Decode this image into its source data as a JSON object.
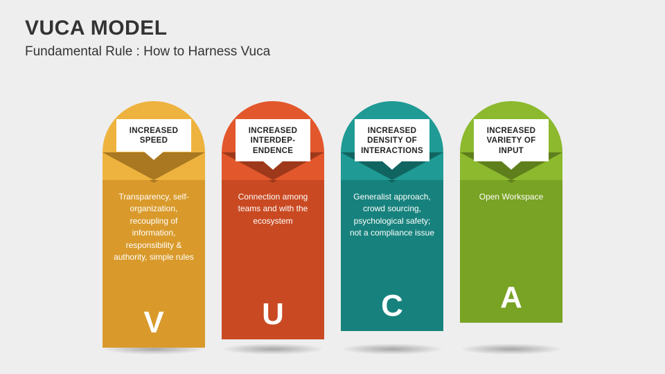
{
  "type": "infographic",
  "background_color": "#eeeeee",
  "header": {
    "title": "VUCA MODEL",
    "subtitle": "Fundamental Rule : How to Harness Vuca",
    "title_color": "#333333",
    "title_fontsize": 30,
    "subtitle_fontsize": 19
  },
  "pillars": [
    {
      "letter": "V",
      "label": "INCREASED SPEED",
      "description": "Transparency, self-organization, recoupling of information, responsibility & authority, simple rules",
      "color_light": "#eeb33e",
      "color_dark": "#d99a2b",
      "body_height": 282
    },
    {
      "letter": "U",
      "label": "INCREASED INTERDEP-ENDENCE",
      "description": "Connection among teams and with the ecosystem",
      "color_light": "#e2572c",
      "color_dark": "#c94a22",
      "body_height": 270
    },
    {
      "letter": "C",
      "label": "INCREASED DENSITY OF INTERACTIONS",
      "description": "Generalist approach, crowd sourcing, psychological safety; not a compliance issue",
      "color_light": "#1f9a94",
      "color_dark": "#17827d",
      "body_height": 258
    },
    {
      "letter": "A",
      "label": "INCREASED VARIETY OF INPUT",
      "description": "Open Workspace",
      "color_light": "#8cb92e",
      "color_dark": "#79a324",
      "body_height": 246
    }
  ],
  "layout": {
    "pillar_width": 148,
    "gap": 24,
    "arch_height": 74,
    "flap_drop": 40,
    "label_fontsize": 11.5,
    "desc_fontsize": 12,
    "letter_fontsize": 44
  }
}
